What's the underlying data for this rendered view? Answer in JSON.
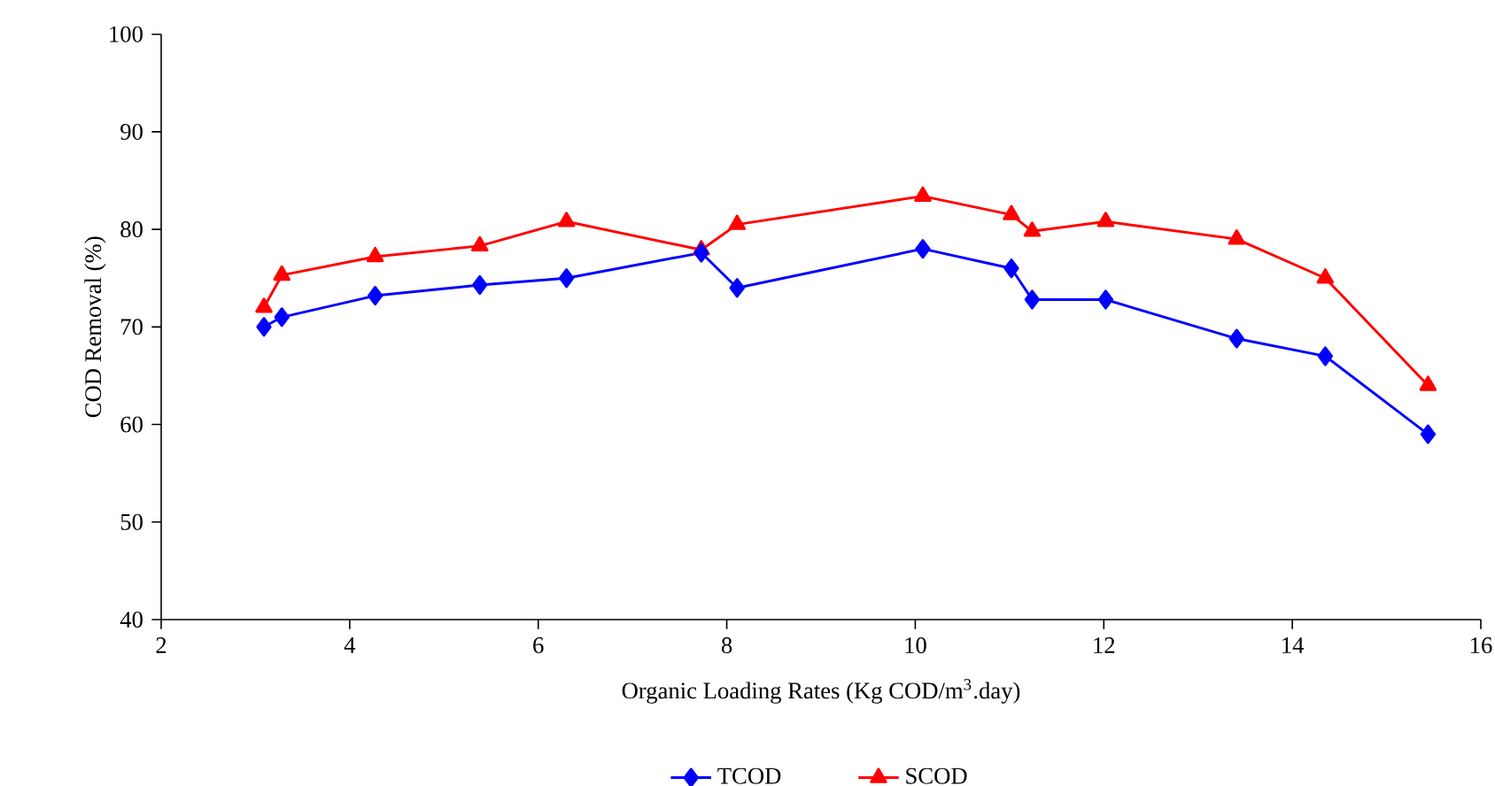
{
  "chart_data": {
    "type": "line",
    "xlabel": "Organic Loading Rates (Kg COD/m$^{3}$.day)",
    "ylabel": "COD Removal (%)",
    "xlim": [
      2,
      16
    ],
    "xticks": [
      2,
      4,
      6,
      8,
      10,
      12,
      14,
      16
    ],
    "ylim": [
      40,
      100
    ],
    "yticks": [
      40,
      50,
      60,
      70,
      80,
      90,
      100
    ],
    "grid": false,
    "legend": "bottom",
    "line_style": "solid",
    "series": [
      {
        "name": "TCOD",
        "color": "#0000ff",
        "marker": "diamond",
        "x": [
          3.09,
          3.28,
          4.27,
          5.38,
          6.3,
          7.73,
          8.11,
          10.08,
          11.02,
          11.24,
          12.02,
          13.41,
          14.35,
          15.44
        ],
        "values": [
          70,
          71,
          73.2,
          74.3,
          75,
          77.6,
          74,
          78,
          76,
          72.8,
          72.8,
          68.8,
          67,
          59
        ]
      },
      {
        "name": "SCOD",
        "color": "#ff0000",
        "marker": "triangle",
        "x": [
          3.09,
          3.28,
          4.27,
          5.38,
          6.3,
          7.73,
          8.11,
          10.08,
          11.02,
          11.24,
          12.02,
          13.41,
          14.35,
          15.44
        ],
        "values": [
          72,
          75.3,
          77.2,
          78.3,
          80.8,
          77.9,
          80.5,
          83.4,
          81.5,
          79.8,
          80.8,
          79,
          75,
          64
        ]
      }
    ]
  }
}
